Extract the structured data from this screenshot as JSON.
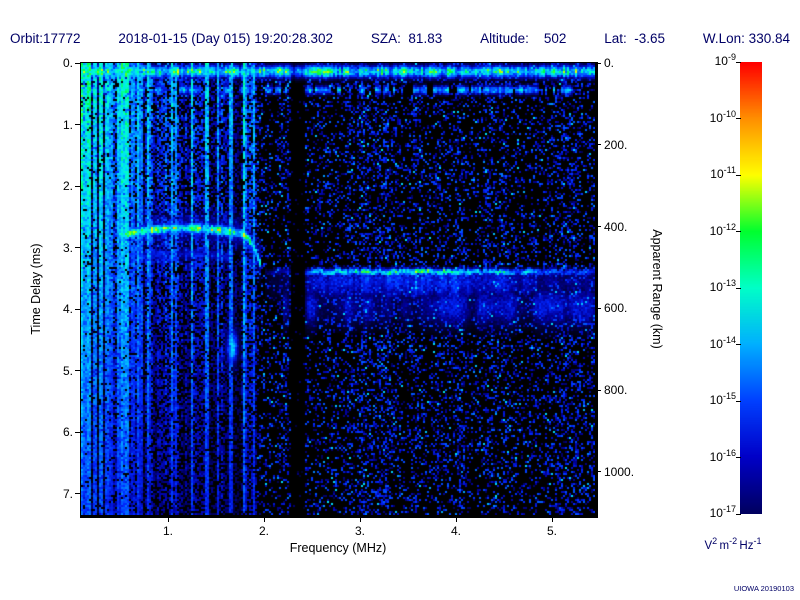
{
  "colors": {
    "annotation": "#000066",
    "axis_text": "#000000",
    "background": "#ffffff"
  },
  "header": {
    "segments": [
      "Orbit:17772",
      "2018-01-15 (Day 015) 19:20:28.302",
      "SZA:  81.83",
      "Altitude:    502",
      "Lat:  -3.65",
      "W.Lon: 330.84"
    ]
  },
  "credit": "UIOWA 20190103",
  "chart_data": {
    "type": "heatmap",
    "title": "",
    "xlabel": "Frequency (MHz)",
    "ylabel_left": "Time Delay (ms)",
    "ylabel_right": "Apparent Range (km)",
    "x_axis": {
      "min": 0.09,
      "max": 5.45,
      "ticks": [
        1,
        2,
        3,
        4,
        5
      ],
      "tick_labels": [
        "1.",
        "2.",
        "3.",
        "4.",
        "5."
      ]
    },
    "y_axis": {
      "min": 0,
      "max": 7.35,
      "unit": "ms",
      "ticks": [
        0,
        1,
        2,
        3,
        4,
        5,
        6,
        7
      ],
      "tick_labels": [
        "0.",
        "1.",
        "2.",
        "3.",
        "4.",
        "5.",
        "6.",
        "7."
      ]
    },
    "right_axis": {
      "min": 0,
      "max": 1102,
      "unit": "km",
      "ticks": [
        0,
        200,
        400,
        600,
        800,
        1000
      ],
      "tick_labels": [
        "0.",
        "200.",
        "400.",
        "600.",
        "800.",
        "1000."
      ]
    },
    "colorbar": {
      "min": "1e-17",
      "max": "1e-9",
      "exponents": [
        -9,
        -10,
        -11,
        -12,
        -13,
        -14,
        -15,
        -16,
        -17
      ],
      "unit_parts": [
        [
          "V",
          "2"
        ],
        [
          "m",
          "-2"
        ],
        [
          "Hz",
          "-1"
        ]
      ],
      "stops": [
        [
          0,
          "#000060"
        ],
        [
          0.125,
          "#0000c8"
        ],
        [
          0.25,
          "#0040ff"
        ],
        [
          0.375,
          "#00b0ff"
        ],
        [
          0.5,
          "#00ffc8"
        ],
        [
          0.625,
          "#00ff30"
        ],
        [
          0.75,
          "#ffff00"
        ],
        [
          0.875,
          "#ff9000"
        ],
        [
          1,
          "#ff0000"
        ]
      ]
    },
    "heatmap_palette": [
      [
        0,
        "#000000"
      ],
      [
        0.08,
        "#000040"
      ],
      [
        0.18,
        "#0000a0"
      ],
      [
        0.3,
        "#0028ff"
      ],
      [
        0.42,
        "#0090ff"
      ],
      [
        0.52,
        "#00d8ff"
      ],
      [
        0.6,
        "#00ffd0"
      ],
      [
        0.7,
        "#00ff40"
      ],
      [
        0.8,
        "#a8ff00"
      ],
      [
        0.88,
        "#ffff00"
      ],
      [
        0.94,
        "#ff8800"
      ],
      [
        1,
        "#ff0000"
      ]
    ],
    "features": {
      "seed": 20190103,
      "ground_band": {
        "delay_ms": 0.14,
        "sigma_ms": 0.1,
        "intensity": 0.72
      },
      "second_band": {
        "delay_ms": 0.44,
        "sigma_ms": 0.07,
        "intensity": 0.48
      },
      "striation_f_max_mhz": 1.92,
      "bright_columns_mhz": [
        [
          0.09,
          0.72
        ],
        [
          0.13,
          0.6
        ],
        [
          0.18,
          0.68
        ],
        [
          0.24,
          0.58
        ],
        [
          0.31,
          0.64
        ],
        [
          0.4,
          0.5
        ],
        [
          0.55,
          0.55
        ],
        [
          0.72,
          0.45
        ],
        [
          1.41,
          0.55
        ],
        [
          1.65,
          0.5
        ]
      ],
      "quiet_gap_mhz": [
        2.29,
        2.41
      ],
      "ionosphere_trace": {
        "f_min": 0.5,
        "f_max": 1.97,
        "delay_start": 2.8,
        "delay_min": 2.69,
        "delay_cusp_end": 3.3,
        "intensity": 0.66
      },
      "surface_echo": {
        "f_min": 2.02,
        "delay_ms": 3.4,
        "peak_f": 3.6,
        "intensity": 0.66
      },
      "diffuse_band": {
        "delay_ms": 3.95,
        "sigma_ms": 0.33,
        "intensity": 0.16,
        "f_min": 2.2
      },
      "oblique_blob": {
        "f_mhz": 1.67,
        "delay_ms": 4.62,
        "intensity": 0.52
      }
    }
  }
}
